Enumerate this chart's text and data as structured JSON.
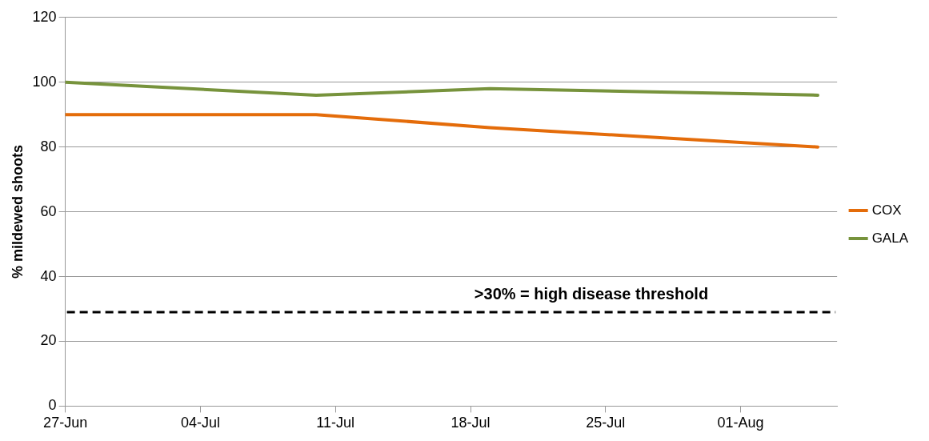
{
  "chart_data": {
    "type": "line",
    "ylabel": "% mildewed shoots",
    "x": [
      "--06-27",
      "--07-10",
      "--07-19",
      "--08-05"
    ],
    "series": [
      {
        "name": "COX",
        "color": "#e46c0a",
        "values": [
          90,
          90,
          86,
          80
        ]
      },
      {
        "name": "GALA",
        "color": "#77933c",
        "values": [
          100,
          96,
          98,
          96
        ]
      }
    ],
    "xlim": [
      "--06-27",
      "--08-06"
    ],
    "xticks": [
      {
        "value": "--06-27",
        "label": "27-Jun"
      },
      {
        "value": "--07-04",
        "label": "04-Jul"
      },
      {
        "value": "--07-11",
        "label": "11-Jul"
      },
      {
        "value": "--07-18",
        "label": "18-Jul"
      },
      {
        "value": "--07-25",
        "label": "25-Jul"
      },
      {
        "value": "--08-01",
        "label": "01-Aug"
      }
    ],
    "ylim": [
      0,
      120
    ],
    "yticks": [
      0,
      20,
      40,
      60,
      80,
      100,
      120
    ],
    "ref_lines": [
      {
        "axis": "y",
        "value": 29,
        "label": ">30% = high disease threshold",
        "color": "#000000",
        "line_style": "dashed"
      }
    ],
    "grid": "y",
    "legend": "right",
    "marker": "none",
    "line_style": "solid"
  }
}
